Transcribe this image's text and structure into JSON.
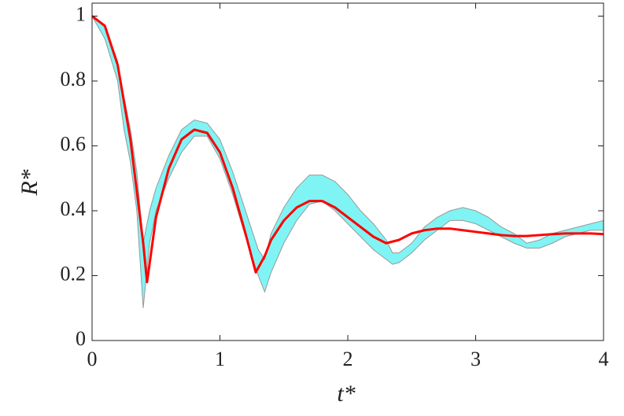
{
  "chart_data": {
    "type": "line",
    "xlabel": "t*",
    "ylabel": "R*",
    "xlim": [
      0,
      4
    ],
    "ylim": [
      0,
      1.04
    ],
    "xticks": [
      0,
      1,
      2,
      3,
      4
    ],
    "yticks": [
      0,
      0.2,
      0.4,
      0.6,
      0.8,
      1
    ],
    "band": {
      "color": "#80f4f4",
      "edge_color": "#999999",
      "x": [
        0,
        0.1,
        0.2,
        0.25,
        0.3,
        0.35,
        0.4,
        0.45,
        0.5,
        0.6,
        0.7,
        0.8,
        0.9,
        1.0,
        1.1,
        1.2,
        1.3,
        1.35,
        1.4,
        1.5,
        1.6,
        1.7,
        1.8,
        1.9,
        2.0,
        2.1,
        2.2,
        2.3,
        2.35,
        2.4,
        2.5,
        2.6,
        2.7,
        2.8,
        2.9,
        3.0,
        3.1,
        3.2,
        3.3,
        3.4,
        3.5,
        3.6,
        3.7,
        3.8,
        3.9,
        4.0
      ],
      "lower": [
        1,
        0.93,
        0.8,
        0.65,
        0.55,
        0.4,
        0.1,
        0.3,
        0.4,
        0.5,
        0.58,
        0.63,
        0.63,
        0.56,
        0.45,
        0.32,
        0.2,
        0.15,
        0.21,
        0.3,
        0.37,
        0.42,
        0.43,
        0.4,
        0.36,
        0.32,
        0.28,
        0.25,
        0.235,
        0.24,
        0.27,
        0.31,
        0.34,
        0.37,
        0.37,
        0.36,
        0.34,
        0.32,
        0.3,
        0.285,
        0.285,
        0.3,
        0.32,
        0.33,
        0.34,
        0.34
      ],
      "upper": [
        1,
        0.97,
        0.86,
        0.75,
        0.65,
        0.52,
        0.3,
        0.4,
        0.47,
        0.57,
        0.65,
        0.68,
        0.67,
        0.62,
        0.52,
        0.4,
        0.28,
        0.25,
        0.33,
        0.41,
        0.47,
        0.51,
        0.51,
        0.49,
        0.45,
        0.4,
        0.36,
        0.31,
        0.27,
        0.27,
        0.3,
        0.35,
        0.38,
        0.4,
        0.41,
        0.4,
        0.38,
        0.35,
        0.33,
        0.3,
        0.31,
        0.33,
        0.34,
        0.35,
        0.36,
        0.37
      ]
    },
    "series": [
      {
        "color": "#ff0000",
        "x": [
          0,
          0.1,
          0.2,
          0.3,
          0.4,
          0.43,
          0.5,
          0.6,
          0.7,
          0.8,
          0.9,
          1.0,
          1.1,
          1.2,
          1.28,
          1.35,
          1.4,
          1.5,
          1.6,
          1.7,
          1.8,
          1.9,
          2.0,
          2.1,
          2.2,
          2.3,
          2.4,
          2.5,
          2.6,
          2.7,
          2.8,
          2.9,
          3.0,
          3.1,
          3.2,
          3.3,
          3.4,
          3.5,
          3.6,
          3.7,
          3.8,
          3.9,
          4.0
        ],
        "values": [
          1,
          0.97,
          0.85,
          0.62,
          0.3,
          0.18,
          0.38,
          0.53,
          0.62,
          0.65,
          0.64,
          0.58,
          0.47,
          0.33,
          0.21,
          0.26,
          0.31,
          0.37,
          0.41,
          0.43,
          0.43,
          0.41,
          0.38,
          0.35,
          0.32,
          0.3,
          0.31,
          0.33,
          0.34,
          0.345,
          0.345,
          0.34,
          0.335,
          0.33,
          0.325,
          0.322,
          0.322,
          0.325,
          0.328,
          0.33,
          0.33,
          0.33,
          0.328
        ]
      }
    ]
  }
}
